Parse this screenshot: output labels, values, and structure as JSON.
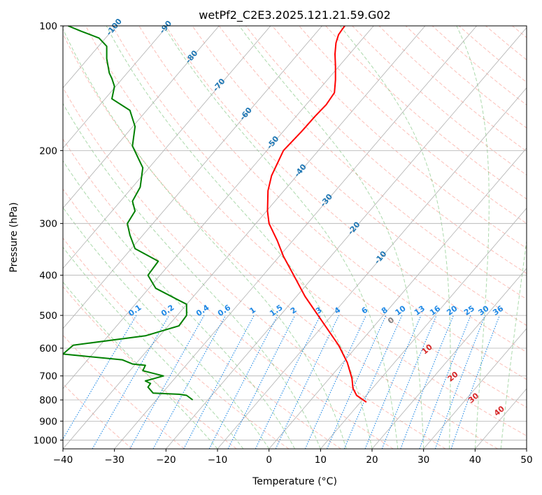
{
  "chart_data": {
    "type": "line",
    "title": "wetPf2_C2E3.2025.121.21.59.G02",
    "xlabel": "Temperature (°C)",
    "ylabel": "Pressure (hPa)",
    "xlim": [
      -40,
      50
    ],
    "ylim": [
      1050,
      100
    ],
    "y_scale": "log",
    "grid": true,
    "x_ticks": [
      "−40",
      "−30",
      "−20",
      "−10",
      "0",
      "10",
      "20",
      "30",
      "40",
      "50"
    ],
    "y_ticks": [
      {
        "p": 100,
        "label": "100"
      },
      {
        "p": 200,
        "label": "200"
      },
      {
        "p": 300,
        "label": "300"
      },
      {
        "p": 400,
        "label": "400"
      },
      {
        "p": 500,
        "label": "500"
      },
      {
        "p": 600,
        "label": "600"
      },
      {
        "p": 700,
        "label": "700"
      },
      {
        "p": 800,
        "label": "800"
      },
      {
        "p": 900,
        "label": "900"
      },
      {
        "p": 1000,
        "label": "1000"
      }
    ],
    "colors": {
      "temperature": "#ff0000",
      "dewpoint": "#008000",
      "isotherm_label": "#1f77b4",
      "mixing_ratio": "#1e88e5",
      "dry_adiabat": "#fa8072",
      "moist_adiabat": "#2ca02c",
      "theta_e_label": "#d62728",
      "grid": "#b0b0b0"
    },
    "series": [
      {
        "key": "temperature",
        "x": [
          18.9,
          17.0,
          16.3,
          16.1,
          15.2,
          13.5,
          11.8,
          10.0,
          7.0,
          4.8,
          2.8,
          1.6,
          0.0,
          -0.3,
          -0.2,
          0.5,
          2.8,
          6.3,
          9.0,
          11.1,
          12.7,
          12.9,
          12.9,
          12.8,
          13.0,
          13.5,
          14.2,
          14.7
        ],
        "y": [
          810,
          780,
          750,
          710,
          650,
          590,
          550,
          510,
          450,
          400,
          360,
          330,
          300,
          280,
          250,
          230,
          200,
          180,
          165,
          155,
          145,
          135,
          125,
          117,
          110,
          105,
          102,
          100
        ]
      },
      {
        "key": "dewpoint",
        "x": [
          -14.8,
          -16.0,
          -17.5,
          -22.5,
          -23.5,
          -23.0,
          -24.0,
          -20.5,
          -24.5,
          -24.0,
          -26.5,
          -28.5,
          -40.0,
          -38.0,
          -24.0,
          -17.5,
          -16.0,
          -16.0,
          -22.0,
          -23.5,
          -21.5,
          -26.0,
          -27.0,
          -27.5,
          -26.0,
          -26.5,
          -25.0,
          -24.5,
          -26.5,
          -26.0,
          -27.0,
          -30.5,
          -30.0,
          -30.5,
          -31.0,
          -31.5,
          -31.5,
          -33.0,
          -36.5,
          -39.0
        ],
        "y": [
          800,
          780,
          775,
          770,
          745,
          730,
          720,
          700,
          680,
          660,
          655,
          640,
          620,
          590,
          560,
          530,
          500,
          470,
          430,
          400,
          370,
          345,
          320,
          300,
          280,
          265,
          245,
          220,
          195,
          175,
          160,
          150,
          140,
          134,
          130,
          120,
          112,
          107,
          103,
          100
        ]
      }
    ],
    "isotherm_labels": [
      "-100",
      "-90",
      "-80",
      "-70",
      "-60",
      "-50",
      "-40",
      "-30",
      "-20",
      "-10"
    ],
    "mixing_ratio_labels": [
      "0.1",
      "0.2",
      "0.4",
      "0.6",
      "1",
      "1.5",
      "2",
      "3",
      "4",
      "6",
      "8",
      "10",
      "13",
      "16",
      "20",
      "25",
      "30",
      "36"
    ],
    "theta_e_labels": [
      "0",
      "10",
      "20",
      "30",
      "40"
    ]
  }
}
